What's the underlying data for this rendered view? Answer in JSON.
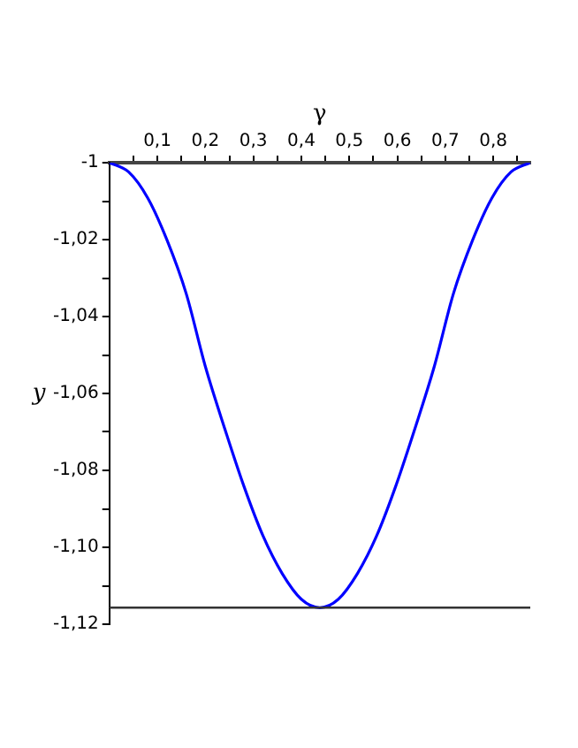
{
  "chart_data": {
    "type": "line",
    "xlabel": "γ",
    "ylabel": "y",
    "x": [
      0,
      0.04,
      0.08,
      0.12,
      0.16,
      0.2,
      0.24,
      0.28,
      0.32,
      0.36,
      0.4,
      0.4385,
      0.477,
      0.517,
      0.557,
      0.597,
      0.637,
      0.677,
      0.717,
      0.757,
      0.797,
      0.837,
      0.877
    ],
    "series": [
      {
        "color": "#0000ff",
        "values": [
          -1,
          -1.0024,
          -1.0092,
          -1.0201,
          -1.034,
          -1.053,
          -1.069,
          -1.084,
          -1.097,
          -1.1068,
          -1.1135,
          -1.1157,
          -1.1135,
          -1.1068,
          -1.097,
          -1.084,
          -1.069,
          -1.053,
          -1.034,
          -1.0201,
          -1.0092,
          -1.0024,
          -1
        ]
      }
    ],
    "xlim": [
      0,
      0.877
    ],
    "ylim": [
      -1.12,
      -1
    ],
    "xticks": [
      {
        "value": 0.05,
        "label": null
      },
      {
        "value": 0.1,
        "label": "0,1"
      },
      {
        "value": 0.15,
        "label": null
      },
      {
        "value": 0.2,
        "label": "0,2"
      },
      {
        "value": 0.25,
        "label": null
      },
      {
        "value": 0.3,
        "label": "0,3"
      },
      {
        "value": 0.35,
        "label": null
      },
      {
        "value": 0.4,
        "label": "0,4"
      },
      {
        "value": 0.45,
        "label": null
      },
      {
        "value": 0.5,
        "label": "0,5"
      },
      {
        "value": 0.55,
        "label": null
      },
      {
        "value": 0.6,
        "label": "0,6"
      },
      {
        "value": 0.65,
        "label": null
      },
      {
        "value": 0.7,
        "label": "0,7"
      },
      {
        "value": 0.75,
        "label": null
      },
      {
        "value": 0.8,
        "label": "0,8"
      },
      {
        "value": 0.85,
        "label": null
      }
    ],
    "yticks": [
      {
        "value": -1,
        "label": "-1"
      },
      {
        "value": -1.01,
        "label": null
      },
      {
        "value": -1.02,
        "label": "-1,02"
      },
      {
        "value": -1.03,
        "label": null
      },
      {
        "value": -1.04,
        "label": "-1,04"
      },
      {
        "value": -1.05,
        "label": null
      },
      {
        "value": -1.06,
        "label": "-1,06"
      },
      {
        "value": -1.07,
        "label": null
      },
      {
        "value": -1.08,
        "label": "-1,08"
      },
      {
        "value": -1.09,
        "label": null
      },
      {
        "value": -1.1,
        "label": "-1,10"
      },
      {
        "value": -1.11,
        "label": null
      },
      {
        "value": -1.12,
        "label": "-1,12"
      }
    ],
    "ref_lines": [
      {
        "axis": "y",
        "value": -1.1157,
        "color": "#333333"
      }
    ],
    "grid": false,
    "legend": false,
    "marker": "none",
    "line_style": "solid"
  }
}
